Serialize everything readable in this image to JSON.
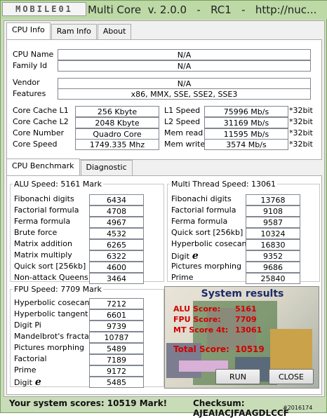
{
  "window": {
    "logo_text": "MOBILE01",
    "title": "Multi Core  v. 2.0.0   -   RC1   -   http://nuc..."
  },
  "tabs": [
    "CPU Info",
    "Ram Info",
    "About"
  ],
  "cpu_info": {
    "name_label": "CPU Name",
    "name_value": "N/A",
    "family_label": "Family Id",
    "family_value": "N/A",
    "vendor_label": "Vendor",
    "vendor_value": "N/A",
    "features_label": "Features",
    "features_value": "x86, MMX, SSE, SSE2, SSE3",
    "left": [
      {
        "label": "Core Cache L1",
        "value": "256 Kbyte"
      },
      {
        "label": "Core Cache L2",
        "value": "2048 Kbyte"
      },
      {
        "label": "Core Number",
        "value": "Quadro Core"
      },
      {
        "label": "Core Speed",
        "value": "1749.335 Mhz"
      }
    ],
    "right": [
      {
        "label": "L1 Speed",
        "value": "75996 Mb/s",
        "ext": "*32bit"
      },
      {
        "label": "L2 Speed",
        "value": "31169 Mb/s",
        "ext": "*32bit"
      },
      {
        "label": "Mem read",
        "value": "11595 Mb/s",
        "ext": "*32bit"
      },
      {
        "label": "Mem write",
        "value": "3574 Mb/s",
        "ext": "*32bit"
      }
    ]
  },
  "bench_tabs": [
    "CPU Benchmark",
    "Diagnostic"
  ],
  "alu": {
    "title": "ALU Speed:  5161 Mark",
    "items": [
      {
        "label": "Fibonachi digits",
        "value": "6434"
      },
      {
        "label": "Factorial formula",
        "value": "4708"
      },
      {
        "label": "Ferma formula",
        "value": "4967"
      },
      {
        "label": "Brute force",
        "value": "4532"
      },
      {
        "label": "Matrix addition",
        "value": "6265"
      },
      {
        "label": "Matrix multiply",
        "value": "6322"
      },
      {
        "label": "Quick sort [256kb]",
        "value": "4600"
      },
      {
        "label": "Non-attack Queens",
        "value": "3464"
      }
    ]
  },
  "multi": {
    "title": "Multi Thread Speed:  13061",
    "items": [
      {
        "label": "Fibonachi digits",
        "value": "13768"
      },
      {
        "label": "Factorial formula",
        "value": "9108"
      },
      {
        "label": "Ferma formula",
        "value": "9587"
      },
      {
        "label": "Quick sort [256kb]",
        "value": "10324"
      },
      {
        "label": "Hyperbolic cosecant",
        "value": "16830"
      },
      {
        "label": "Digit",
        "value": "9352",
        "symbol": "e"
      },
      {
        "label": "Pictures morphing",
        "value": "9686"
      },
      {
        "label": "Prime",
        "value": "25840"
      }
    ]
  },
  "fpu": {
    "title": "FPU Speed:  7709 Mark",
    "items": [
      {
        "label": "Hyperbolic cosecant",
        "value": "7212"
      },
      {
        "label": "Hyperbolic tangent",
        "value": "6601"
      },
      {
        "label": "Digit Pi",
        "value": "9739"
      },
      {
        "label": "Mandelbrot's fractal",
        "value": "10787"
      },
      {
        "label": "Pictures morphing",
        "value": "5489"
      },
      {
        "label": "Factorial",
        "value": "7189"
      },
      {
        "label": "Prime",
        "value": "9172"
      },
      {
        "label": "Digit",
        "value": "5485",
        "symbol": "e"
      }
    ]
  },
  "results": {
    "title": "System results",
    "alu_label": "ALU Score:",
    "alu_value": "5161",
    "fpu_label": "FPU Score:",
    "fpu_value": "7709",
    "mt_label": "MT Score 4t:",
    "mt_value": "13061",
    "total_label": "Total Score:",
    "total_value": "10519",
    "run": "RUN",
    "close": "CLOSE"
  },
  "status": {
    "scores": "Your system scores: 10519 Mark!",
    "checksum": "Checksum:  AJEAIACJFAAGDLCCF",
    "watermark": "#2016174"
  },
  "colors": {
    "title_bg": "#bcd9a6",
    "result_red": "#d00000",
    "result_title": "#1a2a6a"
  }
}
